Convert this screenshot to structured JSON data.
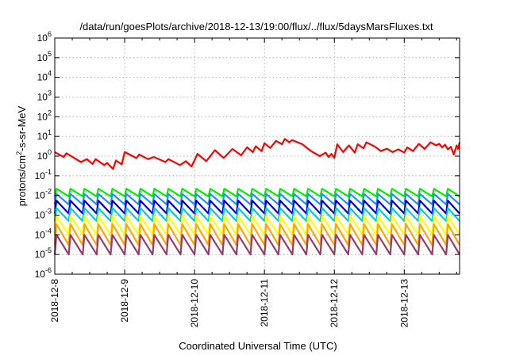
{
  "chart_data": {
    "type": "line",
    "title": "/data/run/goesPlots/archive/2018-12-13/19:00/flux/../flux/5daysMarsFluxes.txt",
    "xlabel": "Coordinated Universal Time (UTC)",
    "ylabel": {
      "prefix": "protons/cm",
      "sup": "2",
      "suffix": "-s-sr-MeV"
    },
    "yscale": "log",
    "ylim": [
      1e-06,
      1000000.0
    ],
    "xlim": [
      "2018-12-08",
      "2018-12-13T19:00"
    ],
    "grid": true,
    "legend": "none",
    "x_tick_labels": [
      "2018-12-8",
      "2018-12-9",
      "2018-12-10",
      "2018-12-11",
      "2018-12-12",
      "2018-12-13"
    ],
    "y_ticks": [
      {
        "base": "10",
        "exp": "-6"
      },
      {
        "base": "10",
        "exp": "-5"
      },
      {
        "base": "10",
        "exp": "-4"
      },
      {
        "base": "10",
        "exp": "-3"
      },
      {
        "base": "10",
        "exp": "-2"
      },
      {
        "base": "10",
        "exp": "-1"
      },
      {
        "base": "10",
        "exp": "0"
      },
      {
        "base": "10",
        "exp": "1"
      },
      {
        "base": "10",
        "exp": "2"
      },
      {
        "base": "10",
        "exp": "3"
      },
      {
        "base": "10",
        "exp": "4"
      },
      {
        "base": "10",
        "exp": "5"
      },
      {
        "base": "10",
        "exp": "6"
      }
    ],
    "series": [
      {
        "color": "#00ee00",
        "pattern": "sawtooth",
        "low": 0.009,
        "high": 0.022,
        "period_days": 0.2
      },
      {
        "color": "#1e90ff",
        "pattern": "sawtooth",
        "low": 0.0035,
        "high": 0.012,
        "period_days": 0.2
      },
      {
        "color": "#0000cd",
        "pattern": "sawtooth",
        "low": 0.0012,
        "high": 0.0055,
        "period_days": 0.2
      },
      {
        "color": "#00ced1",
        "pattern": "sawtooth",
        "low": 0.0005,
        "high": 0.0023,
        "period_days": 0.2
      },
      {
        "color": "#ffff00",
        "pattern": "sawtooth",
        "low": 0.0001,
        "high": 0.0009,
        "period_days": 0.2
      },
      {
        "color": "#ffa500",
        "pattern": "sawtooth",
        "low": 3e-05,
        "high": 0.00035,
        "period_days": 0.2
      },
      {
        "color": "#9a3a6a",
        "pattern": "sawtooth",
        "low": 1e-05,
        "high": 0.0001,
        "period_days": 0.2
      },
      {
        "color": "#ff0000",
        "pattern": "profile",
        "points": [
          [
            "2018-12-08T00:00",
            1.6
          ],
          [
            "2018-12-08T03:00",
            0.9
          ],
          [
            "2018-12-08T04:00",
            1.4
          ],
          [
            "2018-12-08T09:00",
            0.5
          ],
          [
            "2018-12-08T11:00",
            0.7
          ],
          [
            "2018-12-08T13:00",
            0.4
          ],
          [
            "2018-12-08T14:00",
            0.7
          ],
          [
            "2018-12-08T17:00",
            0.35
          ],
          [
            "2018-12-08T18:00",
            0.45
          ],
          [
            "2018-12-08T20:00",
            0.22
          ],
          [
            "2018-12-08T21:00",
            0.6
          ],
          [
            "2018-12-08T23:00",
            0.38
          ],
          [
            "2018-12-09T00:00",
            1.6
          ],
          [
            "2018-12-09T04:00",
            0.8
          ],
          [
            "2018-12-09T05:00",
            1.2
          ],
          [
            "2018-12-09T08:00",
            0.7
          ],
          [
            "2018-12-09T10:00",
            0.9
          ],
          [
            "2018-12-09T14:00",
            0.5
          ],
          [
            "2018-12-09T15:00",
            0.7
          ],
          [
            "2018-12-09T19:00",
            0.35
          ],
          [
            "2018-12-09T21:00",
            0.55
          ],
          [
            "2018-12-09T23:00",
            0.3
          ],
          [
            "2018-12-10T01:00",
            1.3
          ],
          [
            "2018-12-10T04:00",
            0.55
          ],
          [
            "2018-12-10T07:00",
            2.0
          ],
          [
            "2018-12-10T10:00",
            0.8
          ],
          [
            "2018-12-10T13:00",
            2.3
          ],
          [
            "2018-12-10T16:00",
            1.1
          ],
          [
            "2018-12-10T18:00",
            2.8
          ],
          [
            "2018-12-10T20:00",
            1.6
          ],
          [
            "2018-12-10T21:00",
            3.2
          ],
          [
            "2018-12-10T23:00",
            1.8
          ],
          [
            "2018-12-11T00:00",
            4.5
          ],
          [
            "2018-12-11T02:00",
            2.6
          ],
          [
            "2018-12-11T04:00",
            6.0
          ],
          [
            "2018-12-11T06:00",
            4.0
          ],
          [
            "2018-12-11T07:00",
            7.5
          ],
          [
            "2018-12-11T08:30",
            5.0
          ],
          [
            "2018-12-11T09:30",
            6.5
          ],
          [
            "2018-12-11T13:00",
            4.0
          ],
          [
            "2018-12-11T16:00",
            1.8
          ],
          [
            "2018-12-11T19:00",
            1.0
          ],
          [
            "2018-12-11T21:00",
            1.5
          ],
          [
            "2018-12-11T22:00",
            0.9
          ],
          [
            "2018-12-11T23:00",
            1.3
          ],
          [
            "2018-12-12T00:00",
            0.8
          ],
          [
            "2018-12-12T01:00",
            4.0
          ],
          [
            "2018-12-12T03:00",
            1.6
          ],
          [
            "2018-12-12T05:00",
            3.5
          ],
          [
            "2018-12-12T07:00",
            1.5
          ],
          [
            "2018-12-12T08:00",
            4.0
          ],
          [
            "2018-12-12T10:00",
            2.5
          ],
          [
            "2018-12-12T11:00",
            5.0
          ],
          [
            "2018-12-12T14:00",
            3.0
          ],
          [
            "2018-12-12T16:00",
            1.8
          ],
          [
            "2018-12-12T18:00",
            2.4
          ],
          [
            "2018-12-12T20:00",
            1.6
          ],
          [
            "2018-12-12T22:00",
            2.2
          ],
          [
            "2018-12-13T00:00",
            1.5
          ],
          [
            "2018-12-13T01:00",
            2.8
          ],
          [
            "2018-12-13T03:00",
            1.8
          ],
          [
            "2018-12-13T05:00",
            4.2
          ],
          [
            "2018-12-13T07:00",
            2.3
          ],
          [
            "2018-12-13T09:00",
            5.0
          ],
          [
            "2018-12-13T11:00",
            3.5
          ],
          [
            "2018-12-13T12:00",
            4.2
          ],
          [
            "2018-12-13T13:00",
            2.8
          ],
          [
            "2018-12-13T14:00",
            3.8
          ],
          [
            "2018-12-13T15:00",
            2.2
          ],
          [
            "2018-12-13T16:00",
            3.0
          ],
          [
            "2018-12-13T17:00",
            1.2
          ],
          [
            "2018-12-13T18:00",
            3.5
          ],
          [
            "2018-12-13T18:30",
            2.3
          ],
          [
            "2018-12-13T19:00",
            5.0
          ]
        ]
      }
    ]
  }
}
